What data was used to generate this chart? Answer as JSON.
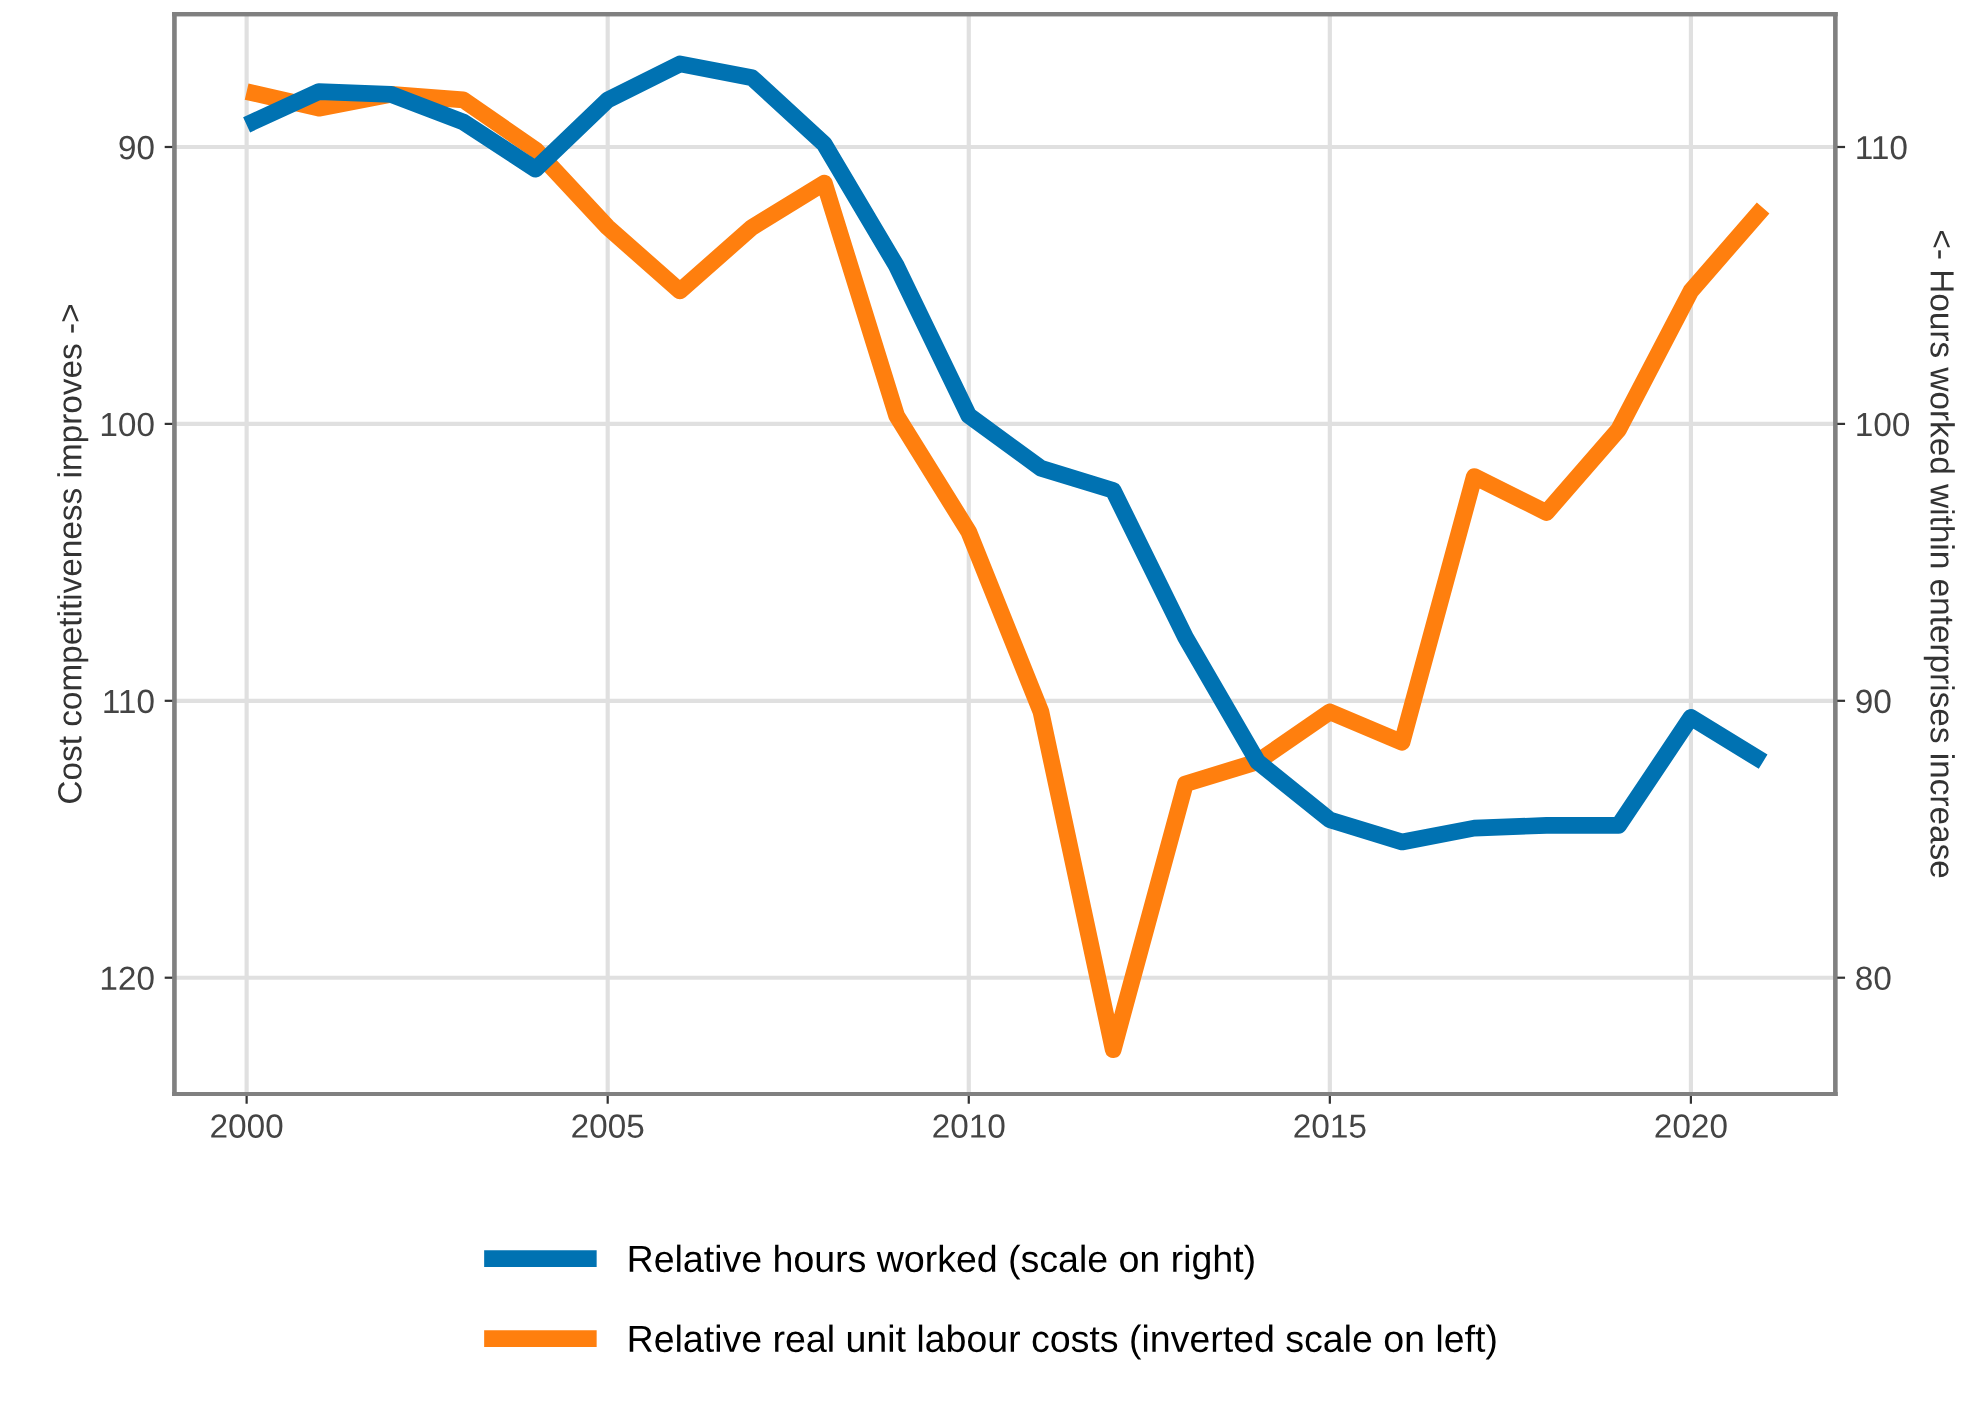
{
  "chart_data": {
    "type": "line",
    "ylabel": "Cost competitiveness improves ->",
    "y2label": "<- Hours worked within enterprises increase",
    "x": [
      2000,
      2001,
      2002,
      2003,
      2004,
      2005,
      2006,
      2007,
      2008,
      2009,
      2010,
      2011,
      2012,
      2013,
      2014,
      2015,
      2016,
      2017,
      2018,
      2019,
      2020,
      2021
    ],
    "series": [
      {
        "name": "Relative hours worked (scale on right)",
        "color": "#0072b2",
        "axis": "y2",
        "values": [
          110.8,
          112.0,
          111.9,
          110.9,
          109.2,
          111.7,
          113.0,
          112.5,
          110.1,
          105.7,
          100.3,
          98.4,
          97.6,
          92.3,
          87.8,
          85.7,
          84.9,
          85.4,
          85.5,
          85.5,
          89.4,
          87.8
        ]
      },
      {
        "name": "Relative real unit labour costs (inverted scale on left)",
        "color": "#ff7f0e",
        "values": [
          88.0,
          88.6,
          88.1,
          88.3,
          90.1,
          92.9,
          95.2,
          92.9,
          91.3,
          99.7,
          103.9,
          110.4,
          122.6,
          113.0,
          112.2,
          110.4,
          111.5,
          101.9,
          103.2,
          100.2,
          95.2,
          92.2
        ]
      }
    ],
    "xlim": [
      1999,
      2022
    ],
    "xticks": [
      2000,
      2005,
      2010,
      2015,
      2020
    ],
    "ylim": [
      124.2,
      85.2
    ],
    "yticks": [
      90,
      100,
      110,
      120
    ],
    "y2lim": [
      75.8,
      114.8
    ],
    "y2ticks": [
      80,
      90,
      100,
      110
    ],
    "grid": true,
    "legend": "bottom"
  }
}
